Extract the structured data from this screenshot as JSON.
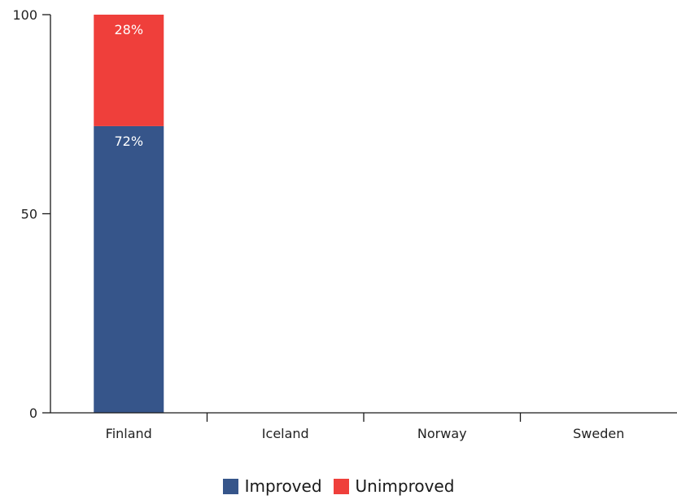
{
  "chart_data": {
    "type": "bar",
    "stacked": true,
    "categories": [
      "Finland",
      "Iceland",
      "Norway",
      "Sweden"
    ],
    "series": [
      {
        "name": "Improved",
        "color": "#36558a",
        "values": [
          72,
          null,
          null,
          null
        ],
        "labels": [
          "72%",
          "",
          "",
          ""
        ]
      },
      {
        "name": "Unimproved",
        "color": "#ef3f3b",
        "values": [
          28,
          null,
          null,
          null
        ],
        "labels": [
          "28%",
          "",
          "",
          ""
        ]
      }
    ],
    "y_ticks": [
      "0",
      "50",
      "100"
    ],
    "ylim": [
      0,
      100
    ],
    "legend_position": "bottom",
    "grid": false
  }
}
